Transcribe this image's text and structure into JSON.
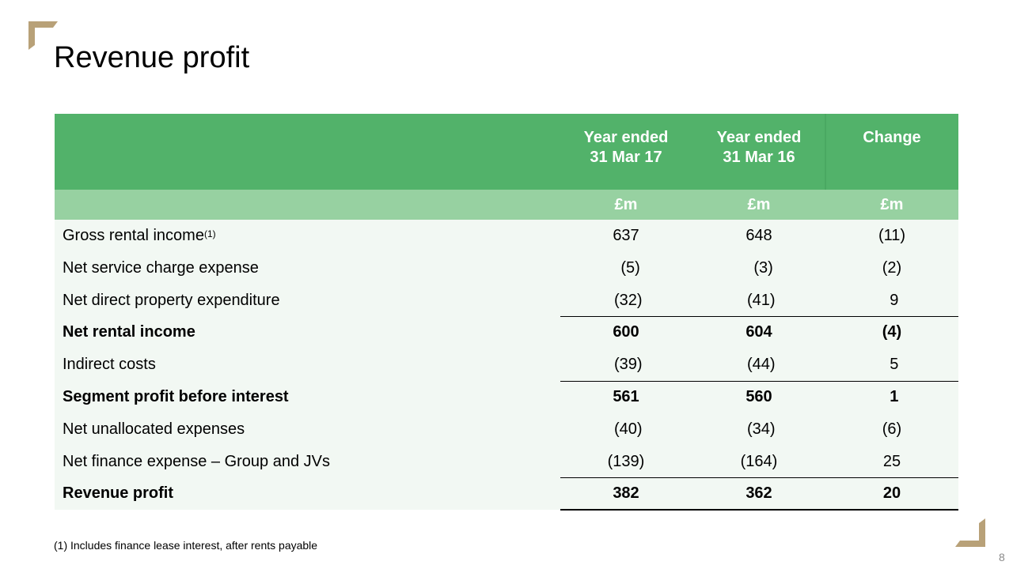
{
  "title": "Revenue profit",
  "colors": {
    "header_green": "#52b26a",
    "units_green": "#97d1a1",
    "body_bg": "#f2f8f3",
    "corner_gold": "#b8a178"
  },
  "icons": {
    "top_left": "corner-bracket-icon",
    "bottom_right": "corner-bracket-icon"
  },
  "table": {
    "columns": [
      {
        "line1": "Year ended",
        "line2": "31 Mar 17",
        "unit": "£m"
      },
      {
        "line1": "Year ended",
        "line2": "31 Mar 16",
        "unit": "£m"
      },
      {
        "line1": "Change",
        "line2": "",
        "unit": "£m"
      }
    ],
    "rows": [
      {
        "label": "Gross rental income",
        "note": "(1)",
        "values": [
          "637",
          "648",
          "(11)"
        ],
        "bold": false
      },
      {
        "label": "Net service charge expense",
        "note": "",
        "values": [
          "  (5)",
          "  (3)",
          "(2)"
        ],
        "bold": false
      },
      {
        "label": "Net direct property expenditure",
        "note": "",
        "values": [
          " (32)",
          " (41)",
          " 9"
        ],
        "bold": false
      },
      {
        "label": "Net rental income",
        "note": "",
        "values": [
          "600",
          "604",
          "(4)"
        ],
        "bold": true
      },
      {
        "label": "Indirect costs",
        "note": "",
        "values": [
          " (39)",
          " (44)",
          " 5"
        ],
        "bold": false
      },
      {
        "label": "Segment profit before interest",
        "note": "",
        "values": [
          "561",
          "560",
          " 1"
        ],
        "bold": true
      },
      {
        "label": "Net unallocated expenses",
        "note": "",
        "values": [
          " (40)",
          " (34)",
          "(6)"
        ],
        "bold": false
      },
      {
        "label": "Net finance expense – Group and JVs",
        "note": "",
        "values": [
          "(139)",
          "(164)",
          "25"
        ],
        "bold": false
      },
      {
        "label": "Revenue profit",
        "note": "",
        "values": [
          "382",
          "362",
          "20"
        ],
        "bold": true
      }
    ]
  },
  "footnote": "(1) Includes finance lease interest, after rents payable",
  "page_number": "8"
}
